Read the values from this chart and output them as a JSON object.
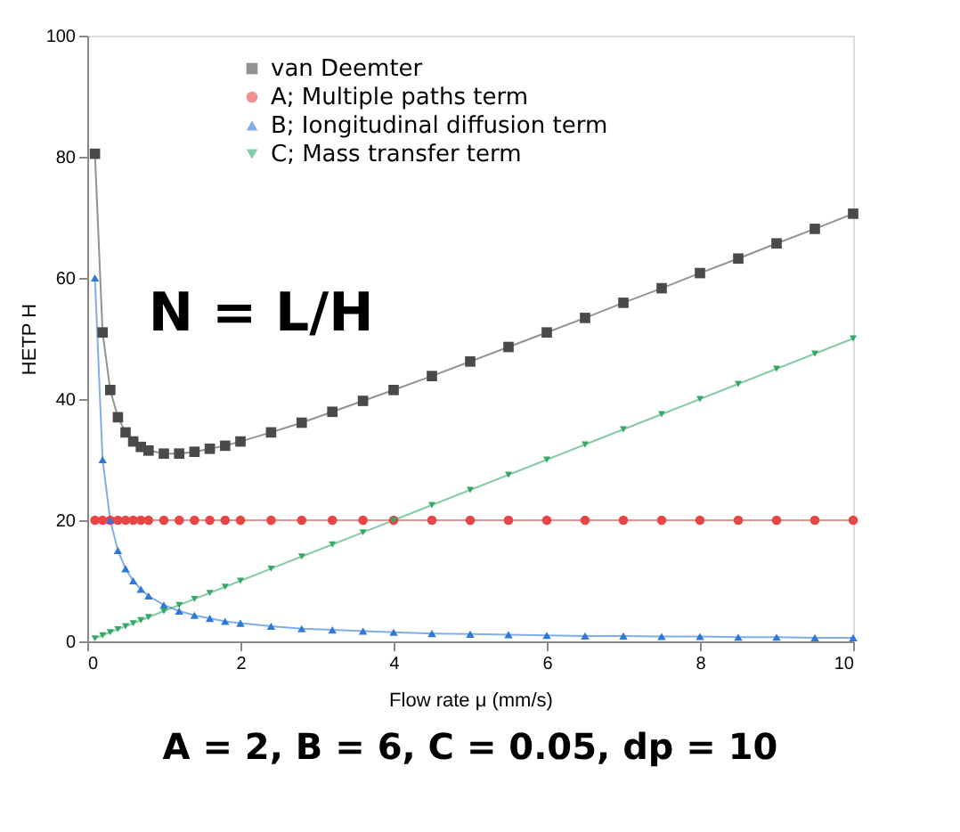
{
  "chart_data": {
    "type": "line",
    "x": [
      0.1,
      0.2,
      0.3,
      0.4,
      0.5,
      0.6,
      0.7,
      0.8,
      1.0,
      1.2,
      1.4,
      1.6,
      1.8,
      2.0,
      2.4,
      2.8,
      3.2,
      3.6,
      4.0,
      4.5,
      5.0,
      5.5,
      6.0,
      6.5,
      7.0,
      7.5,
      8.0,
      8.5,
      9.0,
      9.5,
      10.0
    ],
    "series": [
      {
        "name": "van Deemter",
        "color": "#4a4a4a",
        "marker": "square",
        "values": [
          80.5,
          51,
          41.5,
          37,
          34.5,
          33,
          32.1,
          31.5,
          31,
          31,
          31.3,
          31.8,
          32.3,
          33,
          34.5,
          36.1,
          37.9,
          39.7,
          41.5,
          43.8,
          46.2,
          48.6,
          51,
          53.4,
          55.9,
          58.3,
          60.8,
          63.2,
          65.7,
          68.1,
          70.6
        ]
      },
      {
        "name": "A; Multiple paths term",
        "color": "#e84545",
        "marker": "circle",
        "values": [
          20,
          20,
          20,
          20,
          20,
          20,
          20,
          20,
          20,
          20,
          20,
          20,
          20,
          20,
          20,
          20,
          20,
          20,
          20,
          20,
          20,
          20,
          20,
          20,
          20,
          20,
          20,
          20,
          20,
          20,
          20
        ]
      },
      {
        "name": "B; Iongitudinal diffusion term",
        "color": "#2f78d8",
        "marker": "triangle",
        "values": [
          60,
          30,
          20,
          15,
          12,
          10,
          8.6,
          7.5,
          6,
          5,
          4.3,
          3.8,
          3.3,
          3,
          2.5,
          2.1,
          1.9,
          1.7,
          1.5,
          1.3,
          1.2,
          1.1,
          1,
          0.9,
          0.9,
          0.8,
          0.8,
          0.7,
          0.7,
          0.6,
          0.6
        ]
      },
      {
        "name": "C; Mass transfer term",
        "color": "#35a868",
        "marker": "triangle-down",
        "values": [
          0.5,
          1,
          1.5,
          2,
          2.5,
          3,
          3.5,
          4,
          5,
          6,
          7,
          8,
          9,
          10,
          12,
          14,
          16,
          18,
          20,
          22.5,
          25,
          27.5,
          30,
          32.5,
          35,
          37.5,
          40,
          42.5,
          45,
          47.5,
          50
        ]
      }
    ],
    "xlabel": "Flow rate μ (mm/s)",
    "ylabel": "HETP  H",
    "xlim": [
      0,
      10
    ],
    "xticks": [
      0,
      2,
      4,
      6,
      8,
      10
    ],
    "ylim": [
      0,
      100
    ],
    "yticks": [
      0,
      20,
      40,
      60,
      80,
      100
    ],
    "legend": "top",
    "grid": false,
    "line_style": "solid",
    "annotations": [
      "N = L/H",
      "A = 2, B = 6, C = 0.05, dp = 10"
    ]
  }
}
